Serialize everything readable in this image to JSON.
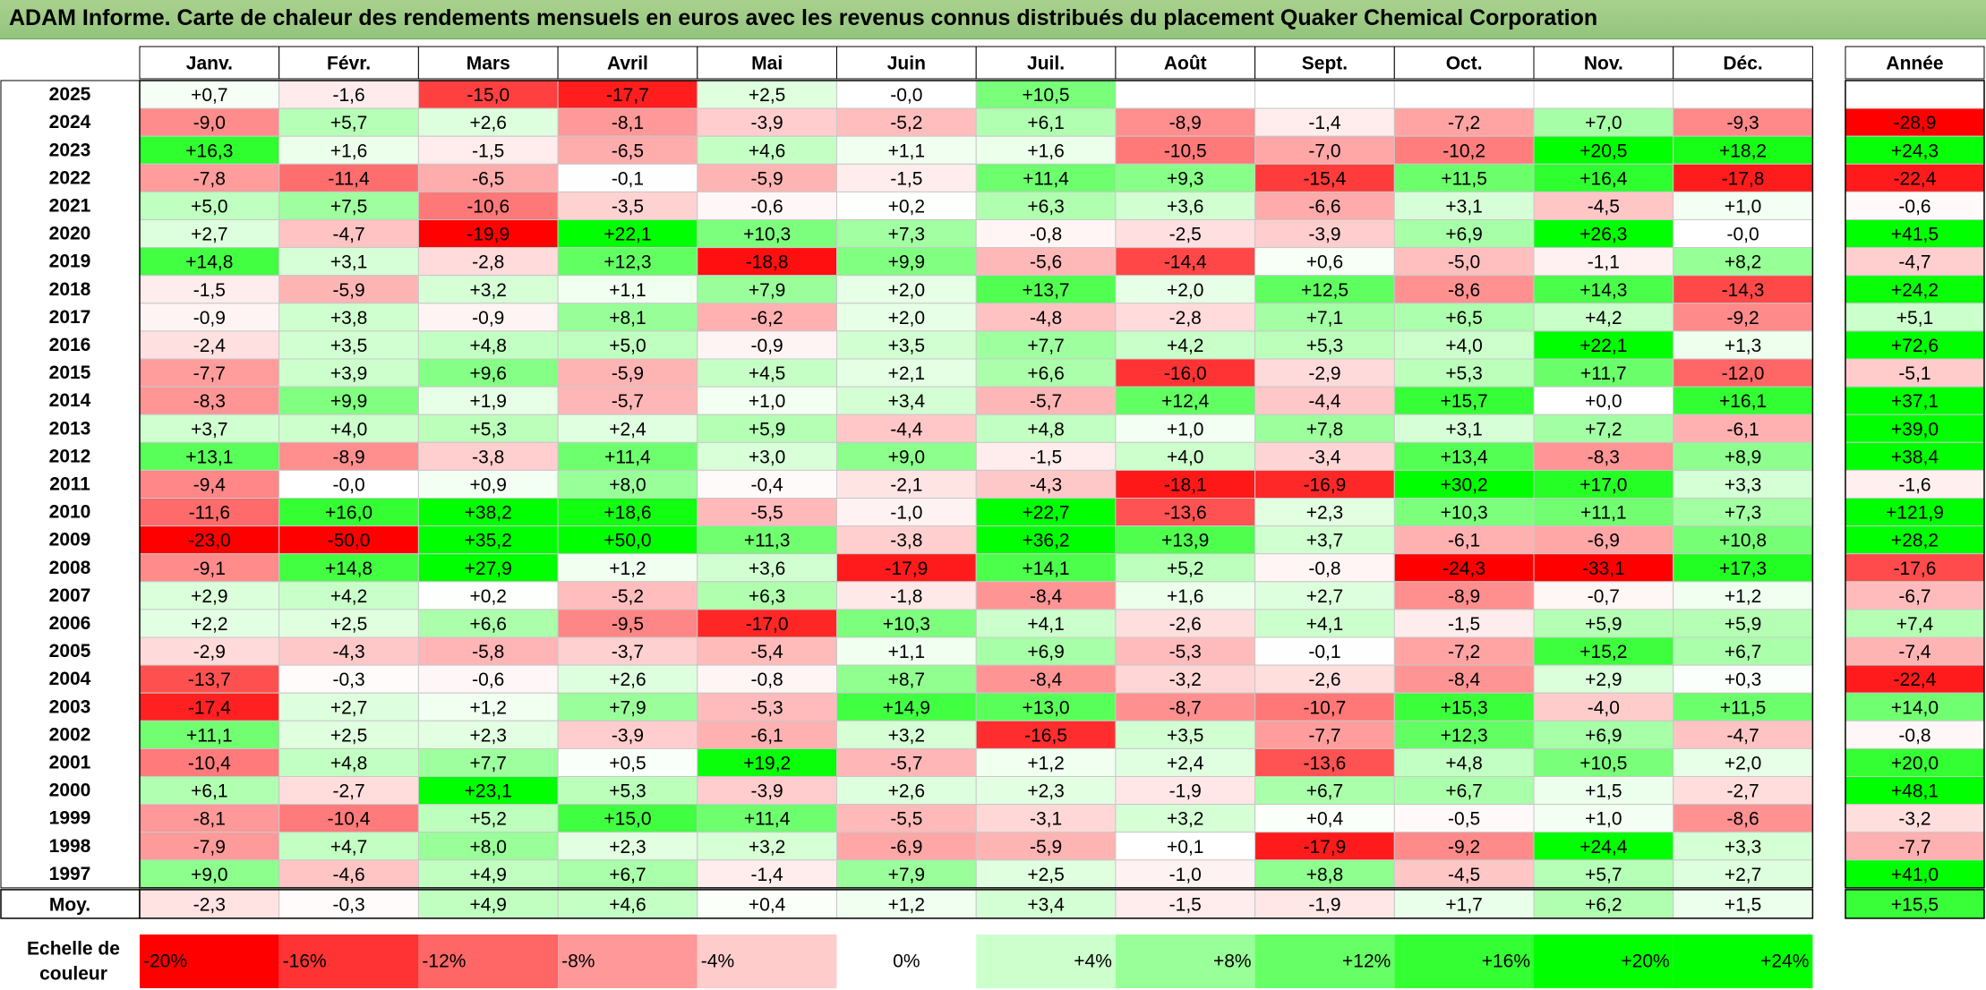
{
  "title": "ADAM Informe. Carte de chaleur des rendements mensuels en euros avec les revenus connus distribués du placement Quaker Chemical Corporation",
  "chart_data": {
    "type": "heatmap",
    "title": "ADAM Informe. Carte de chaleur des rendements mensuels en euros avec les revenus connus distribués du placement Quaker Chemical Corporation",
    "columns": [
      "Janv.",
      "Févr.",
      "Mars",
      "Avril",
      "Mai",
      "Juin",
      "Juil.",
      "Août",
      "Sept.",
      "Oct.",
      "Nov.",
      "Déc."
    ],
    "year_column_label": "Année",
    "rows": [
      {
        "year": "2025",
        "values": [
          "+0,7",
          "-1,6",
          "-15,0",
          "-17,7",
          "+2,5",
          "-0,0",
          "+10,5",
          "",
          "",
          "",
          "",
          ""
        ],
        "annual": ""
      },
      {
        "year": "2024",
        "values": [
          "-9,0",
          "+5,7",
          "+2,6",
          "-8,1",
          "-3,9",
          "-5,2",
          "+6,1",
          "-8,9",
          "-1,4",
          "-7,2",
          "+7,0",
          "-9,3"
        ],
        "annual": "-28,9"
      },
      {
        "year": "2023",
        "values": [
          "+16,3",
          "+1,6",
          "-1,5",
          "-6,5",
          "+4,6",
          "+1,1",
          "+1,6",
          "-10,5",
          "-7,0",
          "-10,2",
          "+20,5",
          "+18,2"
        ],
        "annual": "+24,3"
      },
      {
        "year": "2022",
        "values": [
          "-7,8",
          "-11,4",
          "-6,5",
          "-0,1",
          "-5,9",
          "-1,5",
          "+11,4",
          "+9,3",
          "-15,4",
          "+11,5",
          "+16,4",
          "-17,8"
        ],
        "annual": "-22,4"
      },
      {
        "year": "2021",
        "values": [
          "+5,0",
          "+7,5",
          "-10,6",
          "-3,5",
          "-0,6",
          "+0,2",
          "+6,3",
          "+3,6",
          "-6,6",
          "+3,1",
          "-4,5",
          "+1,0"
        ],
        "annual": "-0,6"
      },
      {
        "year": "2020",
        "values": [
          "+2,7",
          "-4,7",
          "-19,9",
          "+22,1",
          "+10,3",
          "+7,3",
          "-0,8",
          "-2,5",
          "-3,9",
          "+6,9",
          "+26,3",
          "-0,0"
        ],
        "annual": "+41,5"
      },
      {
        "year": "2019",
        "values": [
          "+14,8",
          "+3,1",
          "-2,8",
          "+12,3",
          "-18,8",
          "+9,9",
          "-5,6",
          "-14,4",
          "+0,6",
          "-5,0",
          "-1,1",
          "+8,2"
        ],
        "annual": "-4,7"
      },
      {
        "year": "2018",
        "values": [
          "-1,5",
          "-5,9",
          "+3,2",
          "+1,1",
          "+7,9",
          "+2,0",
          "+13,7",
          "+2,0",
          "+12,5",
          "-8,6",
          "+14,3",
          "-14,3"
        ],
        "annual": "+24,2"
      },
      {
        "year": "2017",
        "values": [
          "-0,9",
          "+3,8",
          "-0,9",
          "+8,1",
          "-6,2",
          "+2,0",
          "-4,8",
          "-2,8",
          "+7,1",
          "+6,5",
          "+4,2",
          "-9,2"
        ],
        "annual": "+5,1"
      },
      {
        "year": "2016",
        "values": [
          "-2,4",
          "+3,5",
          "+4,8",
          "+5,0",
          "-0,9",
          "+3,5",
          "+7,7",
          "+4,2",
          "+5,3",
          "+4,0",
          "+22,1",
          "+1,3"
        ],
        "annual": "+72,6"
      },
      {
        "year": "2015",
        "values": [
          "-7,7",
          "+3,9",
          "+9,6",
          "-5,9",
          "+4,5",
          "+2,1",
          "+6,6",
          "-16,0",
          "-2,9",
          "+5,3",
          "+11,7",
          "-12,0"
        ],
        "annual": "-5,1"
      },
      {
        "year": "2014",
        "values": [
          "-8,3",
          "+9,9",
          "+1,9",
          "-5,7",
          "+1,0",
          "+3,4",
          "-5,7",
          "+12,4",
          "-4,4",
          "+15,7",
          "+0,0",
          "+16,1"
        ],
        "annual": "+37,1"
      },
      {
        "year": "2013",
        "values": [
          "+3,7",
          "+4,0",
          "+5,3",
          "+2,4",
          "+5,9",
          "-4,4",
          "+4,8",
          "+1,0",
          "+7,8",
          "+3,1",
          "+7,2",
          "-6,1"
        ],
        "annual": "+39,0"
      },
      {
        "year": "2012",
        "values": [
          "+13,1",
          "-8,9",
          "-3,8",
          "+11,4",
          "+3,0",
          "+9,0",
          "-1,5",
          "+4,0",
          "-3,4",
          "+13,4",
          "-8,3",
          "+8,9"
        ],
        "annual": "+38,4"
      },
      {
        "year": "2011",
        "values": [
          "-9,4",
          "-0,0",
          "+0,9",
          "+8,0",
          "-0,4",
          "-2,1",
          "-4,3",
          "-18,1",
          "-16,9",
          "+30,2",
          "+17,0",
          "+3,3"
        ],
        "annual": "-1,6"
      },
      {
        "year": "2010",
        "values": [
          "-11,6",
          "+16,0",
          "+38,2",
          "+18,6",
          "-5,5",
          "-1,0",
          "+22,7",
          "-13,6",
          "+2,3",
          "+10,3",
          "+11,1",
          "+7,3"
        ],
        "annual": "+121,9"
      },
      {
        "year": "2009",
        "values": [
          "-23,0",
          "-50,0",
          "+35,2",
          "+50,0",
          "+11,3",
          "-3,8",
          "+36,2",
          "+13,9",
          "+3,7",
          "-6,1",
          "-6,9",
          "+10,8"
        ],
        "annual": "+28,2"
      },
      {
        "year": "2008",
        "values": [
          "-9,1",
          "+14,8",
          "+27,9",
          "+1,2",
          "+3,6",
          "-17,9",
          "+14,1",
          "+5,2",
          "-0,8",
          "-24,3",
          "-33,1",
          "+17,3"
        ],
        "annual": "-17,6"
      },
      {
        "year": "2007",
        "values": [
          "+2,9",
          "+4,2",
          "+0,2",
          "-5,2",
          "+6,3",
          "-1,8",
          "-8,4",
          "+1,6",
          "+2,7",
          "-8,9",
          "-0,7",
          "+1,2"
        ],
        "annual": "-6,7"
      },
      {
        "year": "2006",
        "values": [
          "+2,2",
          "+2,5",
          "+6,6",
          "-9,5",
          "-17,0",
          "+10,3",
          "+4,1",
          "-2,6",
          "+4,1",
          "-1,5",
          "+5,9",
          "+5,9"
        ],
        "annual": "+7,4"
      },
      {
        "year": "2005",
        "values": [
          "-2,9",
          "-4,3",
          "-5,8",
          "-3,7",
          "-5,4",
          "+1,1",
          "+6,9",
          "-5,3",
          "-0,1",
          "-7,2",
          "+15,2",
          "+6,7"
        ],
        "annual": "-7,4"
      },
      {
        "year": "2004",
        "values": [
          "-13,7",
          "-0,3",
          "-0,6",
          "+2,6",
          "-0,8",
          "+8,7",
          "-8,4",
          "-3,2",
          "-2,6",
          "-8,4",
          "+2,9",
          "+0,3"
        ],
        "annual": "-22,4"
      },
      {
        "year": "2003",
        "values": [
          "-17,4",
          "+2,7",
          "+1,2",
          "+7,9",
          "-5,3",
          "+14,9",
          "+13,0",
          "-8,7",
          "-10,7",
          "+15,3",
          "-4,0",
          "+11,5"
        ],
        "annual": "+14,0"
      },
      {
        "year": "2002",
        "values": [
          "+11,1",
          "+2,5",
          "+2,3",
          "-3,9",
          "-6,1",
          "+3,2",
          "-16,5",
          "+3,5",
          "-7,7",
          "+12,3",
          "+6,9",
          "-4,7"
        ],
        "annual": "-0,8"
      },
      {
        "year": "2001",
        "values": [
          "-10,4",
          "+4,8",
          "+7,7",
          "+0,5",
          "+19,2",
          "-5,7",
          "+1,2",
          "+2,4",
          "-13,6",
          "+4,8",
          "+10,5",
          "+2,0"
        ],
        "annual": "+20,0"
      },
      {
        "year": "2000",
        "values": [
          "+6,1",
          "-2,7",
          "+23,1",
          "+5,3",
          "-3,9",
          "+2,6",
          "+2,3",
          "-1,9",
          "+6,7",
          "+6,7",
          "+1,5",
          "-2,7"
        ],
        "annual": "+48,1"
      },
      {
        "year": "1999",
        "values": [
          "-8,1",
          "-10,4",
          "+5,2",
          "+15,0",
          "+11,4",
          "-5,5",
          "-3,1",
          "+3,2",
          "+0,4",
          "-0,5",
          "+1,0",
          "-8,6"
        ],
        "annual": "-3,2"
      },
      {
        "year": "1998",
        "values": [
          "-7,9",
          "+4,7",
          "+8,0",
          "+2,3",
          "+3,2",
          "-6,9",
          "-5,9",
          "+0,1",
          "-17,9",
          "-9,2",
          "+24,4",
          "+3,3"
        ],
        "annual": "-7,7"
      },
      {
        "year": "1997",
        "values": [
          "+9,0",
          "-4,6",
          "+4,9",
          "+6,7",
          "-1,4",
          "+7,9",
          "+2,5",
          "-1,0",
          "+8,8",
          "-4,5",
          "+5,7",
          "+2,7"
        ],
        "annual": "+41,0"
      }
    ],
    "average": {
      "label": "Moy.",
      "values": [
        "-2,3",
        "-0,3",
        "+4,9",
        "+4,6",
        "+0,4",
        "+1,2",
        "+3,4",
        "-1,5",
        "-1,9",
        "+1,7",
        "+6,2",
        "+1,5"
      ],
      "annual": "+15,5"
    },
    "color_scale": {
      "label_line1": "Echelle de",
      "label_line2": "couleur",
      "steps": [
        "-20%",
        "-16%",
        "-12%",
        "-8%",
        "-4%",
        "0%",
        "+4%",
        "+8%",
        "+12%",
        "+16%",
        "+20%",
        "+24%"
      ],
      "negative_color": "#ff0000",
      "positive_color": "#00ff00",
      "neutral_color": "#ffffff"
    }
  }
}
